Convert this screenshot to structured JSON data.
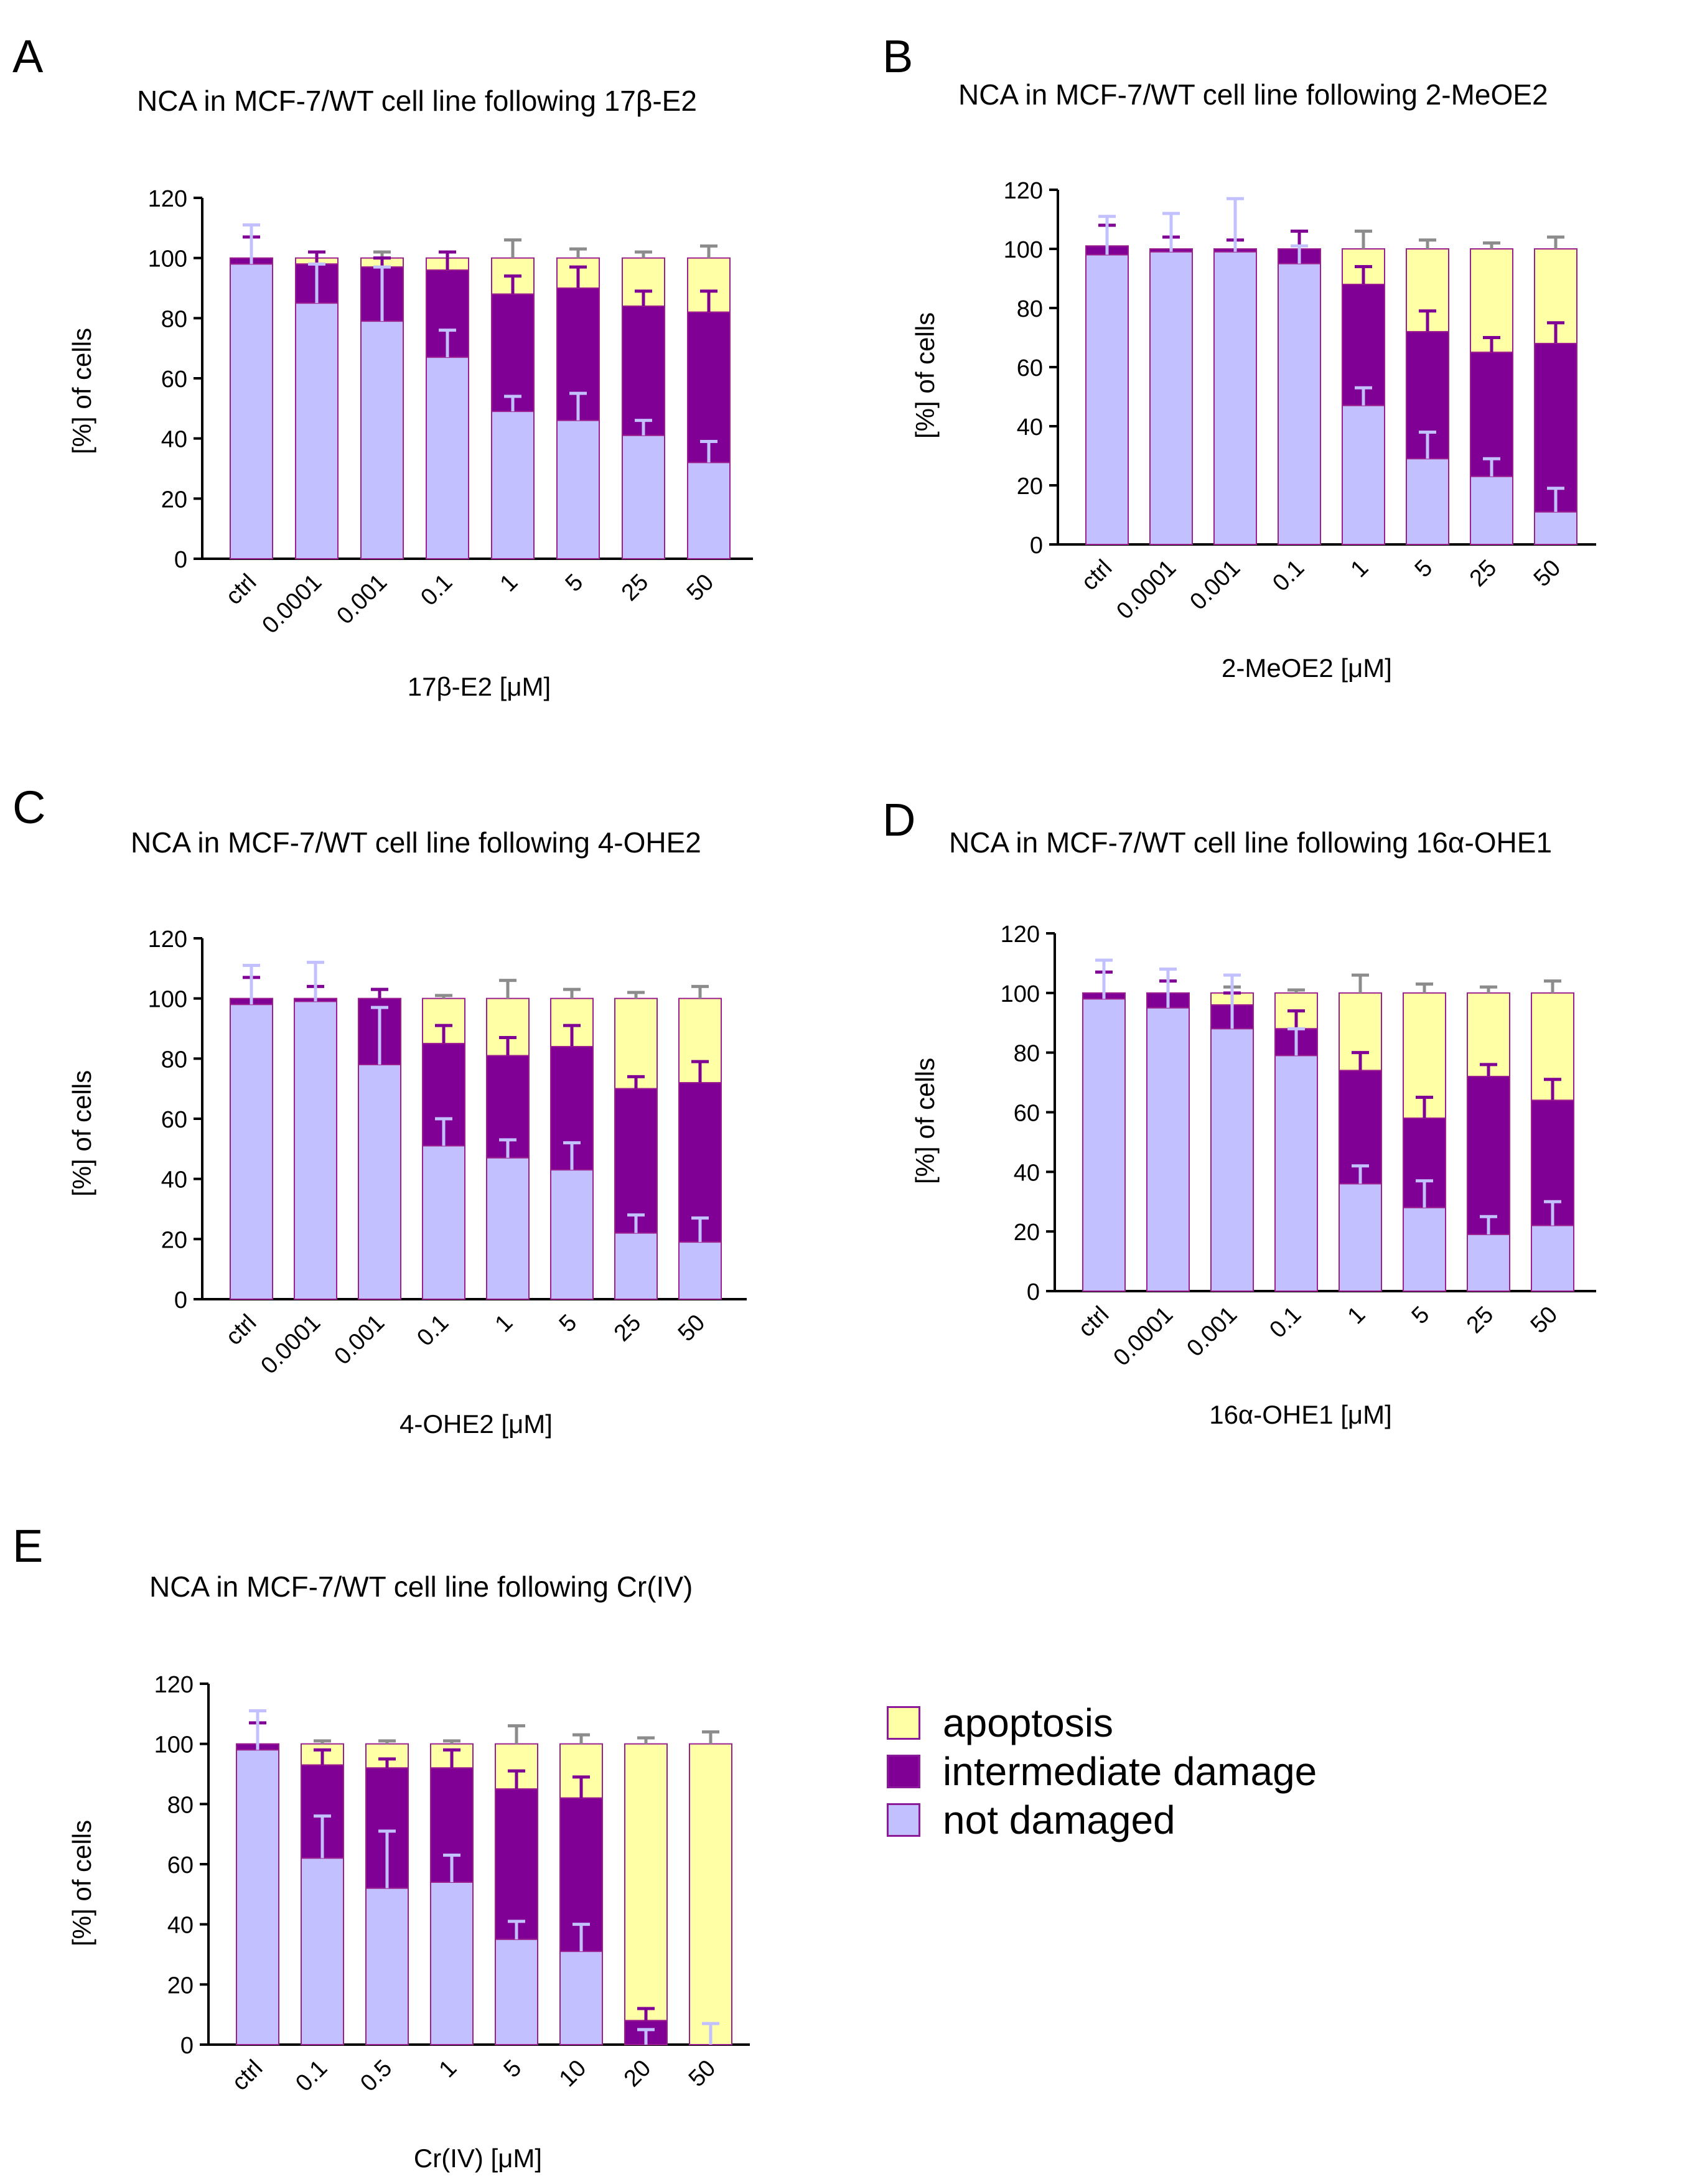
{
  "colors": {
    "apoptosis": "#ffffa6",
    "intermediate": "#800096",
    "not_damaged": "#c2c0ff",
    "bar_edge": "#9b1f8f",
    "err_intermediate": "#800096",
    "err_apoptosis": "#8c8c8c",
    "err_not_damaged": "#c2c0ff"
  },
  "legend": {
    "apoptosis": "apoptosis",
    "intermediate": "intermediate damage",
    "not_damaged": "not damaged"
  },
  "chart_data": [
    {
      "id": "A",
      "type": "bar",
      "stacked": true,
      "title": "NCA in MCF-7/WT cell line following 17β-E2",
      "xlabel": "17β-E2 [μM]",
      "ylabel": "[%] of cells",
      "ylim": [
        0,
        120
      ],
      "yticks": [
        "0",
        "20",
        "40",
        "60",
        "80",
        "100",
        "120"
      ],
      "categories": [
        "ctrl",
        "0.0001",
        "0.001",
        "0.1",
        "1",
        "5",
        "25",
        "50"
      ],
      "series": [
        {
          "name": "not damaged",
          "values": [
            98,
            85,
            79,
            67,
            49,
            46,
            41,
            32
          ],
          "errors": [
            13,
            13,
            18,
            9,
            5,
            9,
            5,
            7
          ]
        },
        {
          "name": "intermediate damage",
          "values": [
            2,
            13,
            18,
            29,
            39,
            44,
            43,
            50
          ],
          "errors": [
            7,
            4,
            3,
            6,
            6,
            7,
            5,
            7
          ]
        },
        {
          "name": "apoptosis",
          "values": [
            0,
            2,
            3,
            4,
            12,
            10,
            16,
            18
          ],
          "errors": [
            0,
            2,
            2,
            2,
            6,
            3,
            2,
            4
          ]
        }
      ]
    },
    {
      "id": "B",
      "type": "bar",
      "stacked": true,
      "title": "NCA in MCF-7/WT cell line following 2-MeOE2",
      "xlabel": "2-MeOE2 [μM]",
      "ylabel": "[%] of cells",
      "ylim": [
        0,
        120
      ],
      "yticks": [
        "0",
        "20",
        "40",
        "60",
        "80",
        "100",
        "120"
      ],
      "categories": [
        "ctrl",
        "0.0001",
        "0.001",
        "0.1",
        "1",
        "5",
        "25",
        "50"
      ],
      "series": [
        {
          "name": "not damaged",
          "values": [
            98,
            99,
            99,
            95,
            47,
            29,
            23,
            11
          ],
          "errors": [
            13,
            13,
            18,
            6,
            6,
            9,
            6,
            8
          ]
        },
        {
          "name": "intermediate damage",
          "values": [
            3,
            1,
            1,
            5,
            41,
            43,
            42,
            57
          ],
          "errors": [
            7,
            4,
            3,
            6,
            6,
            7,
            5,
            7
          ]
        },
        {
          "name": "apoptosis",
          "values": [
            0,
            0,
            0,
            0,
            12,
            28,
            35,
            32
          ],
          "errors": [
            0,
            0,
            0,
            0,
            6,
            3,
            2,
            4
          ]
        }
      ]
    },
    {
      "id": "C",
      "type": "bar",
      "stacked": true,
      "title": "NCA in MCF-7/WT cell line following 4-OHE2",
      "xlabel": "4-OHE2 [μM]",
      "ylabel": "[%] of cells",
      "ylim": [
        0,
        120
      ],
      "yticks": [
        "0",
        "20",
        "40",
        "60",
        "80",
        "100",
        "120"
      ],
      "categories": [
        "ctrl",
        "0.0001",
        "0.001",
        "0.1",
        "1",
        "5",
        "25",
        "50"
      ],
      "series": [
        {
          "name": "not damaged",
          "values": [
            98,
            99,
            78,
            51,
            47,
            43,
            22,
            19
          ],
          "errors": [
            13,
            13,
            19,
            9,
            6,
            9,
            6,
            8
          ]
        },
        {
          "name": "intermediate damage",
          "values": [
            2,
            1,
            22,
            34,
            34,
            41,
            48,
            53
          ],
          "errors": [
            7,
            4,
            3,
            6,
            6,
            7,
            4,
            7
          ]
        },
        {
          "name": "apoptosis",
          "values": [
            0,
            0,
            0,
            15,
            19,
            16,
            30,
            28
          ],
          "errors": [
            0,
            0,
            3,
            1,
            6,
            3,
            2,
            4
          ]
        }
      ]
    },
    {
      "id": "D",
      "type": "bar",
      "stacked": true,
      "title": "NCA in MCF-7/WT cell line following 16α-OHE1",
      "xlabel": "16α-OHE1 [μM]",
      "ylabel": "[%] of cells",
      "ylim": [
        0,
        120
      ],
      "yticks": [
        "0",
        "20",
        "40",
        "60",
        "80",
        "100",
        "120"
      ],
      "categories": [
        "ctrl",
        "0.0001",
        "0.001",
        "0.1",
        "1",
        "5",
        "25",
        "50"
      ],
      "series": [
        {
          "name": "not damaged",
          "values": [
            98,
            95,
            88,
            79,
            36,
            28,
            19,
            22
          ],
          "errors": [
            13,
            13,
            18,
            9,
            6,
            9,
            6,
            8
          ]
        },
        {
          "name": "intermediate damage",
          "values": [
            2,
            5,
            8,
            9,
            38,
            30,
            53,
            42
          ],
          "errors": [
            7,
            4,
            4,
            6,
            6,
            7,
            4,
            7
          ]
        },
        {
          "name": "apoptosis",
          "values": [
            0,
            0,
            4,
            12,
            26,
            42,
            28,
            36
          ],
          "errors": [
            0,
            0,
            2,
            1,
            6,
            3,
            2,
            4
          ]
        }
      ]
    },
    {
      "id": "E",
      "type": "bar",
      "stacked": true,
      "title": "NCA in MCF-7/WT cell line following Cr(IV)",
      "xlabel": "Cr(IV) [μM]",
      "ylabel": "[%] of cells",
      "ylim": [
        0,
        120
      ],
      "yticks": [
        "0",
        "20",
        "40",
        "60",
        "80",
        "100",
        "120"
      ],
      "categories": [
        "ctrl",
        "0.1",
        "0.5",
        "1",
        "5",
        "10",
        "20",
        "50"
      ],
      "series": [
        {
          "name": "not damaged",
          "values": [
            98,
            62,
            52,
            54,
            35,
            31,
            0,
            0
          ],
          "errors": [
            13,
            14,
            19,
            9,
            6,
            9,
            5,
            7
          ]
        },
        {
          "name": "intermediate damage",
          "values": [
            2,
            31,
            40,
            38,
            50,
            51,
            8,
            0
          ],
          "errors": [
            7,
            5,
            3,
            6,
            6,
            7,
            4,
            0
          ]
        },
        {
          "name": "apoptosis",
          "values": [
            0,
            7,
            8,
            8,
            15,
            18,
            92,
            100
          ],
          "errors": [
            0,
            1,
            1,
            1,
            6,
            3,
            2,
            4
          ]
        }
      ]
    }
  ]
}
